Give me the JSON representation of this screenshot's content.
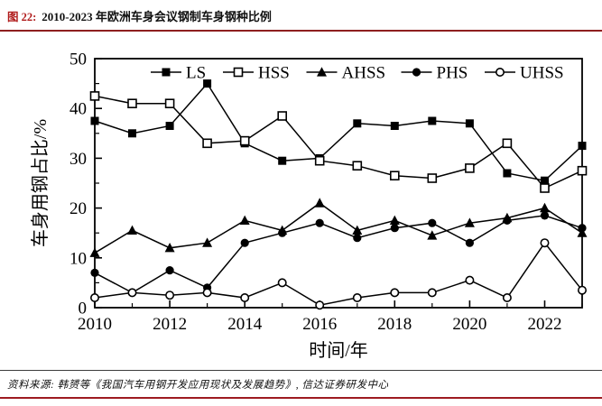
{
  "header": {
    "figure_label": "图 22:",
    "title": "2010-2023 年欧洲车身会议钢制车身钢种比例"
  },
  "footer": {
    "source": "资料来源: 韩赟等《我国汽车用钢开发应用现状及发展趋势》, 信达证券研发中心"
  },
  "colors": {
    "accent_rule": "#9e1b21",
    "header_rule": "#8e1f1f",
    "line_color": "#000000"
  },
  "chart_data": {
    "type": "line",
    "title": "",
    "x": [
      2010,
      2011,
      2012,
      2013,
      2014,
      2015,
      2016,
      2017,
      2018,
      2019,
      2020,
      2021,
      2022,
      2023
    ],
    "series": [
      {
        "name": "LS",
        "marker": "filled-square",
        "values": [
          37.5,
          35,
          36.5,
          45,
          33,
          29.5,
          30,
          37,
          36.5,
          37.5,
          37,
          27,
          25.5,
          32.5
        ]
      },
      {
        "name": "HSS",
        "marker": "open-square",
        "values": [
          42.5,
          41,
          41,
          33,
          33.5,
          38.5,
          29.5,
          28.5,
          26.5,
          26,
          28,
          33,
          24,
          27.5
        ]
      },
      {
        "name": "AHSS",
        "marker": "filled-triangle",
        "values": [
          11,
          15.5,
          12,
          13,
          17.5,
          15.5,
          21,
          15.5,
          17.5,
          14.5,
          17,
          18,
          20,
          15
        ]
      },
      {
        "name": "PHS",
        "marker": "filled-circle",
        "values": [
          7,
          3,
          7.5,
          4,
          13,
          15,
          17,
          14,
          16,
          17,
          13,
          17.5,
          18.5,
          16
        ]
      },
      {
        "name": "UHSS",
        "marker": "open-circle",
        "values": [
          2,
          3,
          2.5,
          3,
          2,
          5,
          0.5,
          2,
          3,
          3,
          5.5,
          2,
          13,
          3.5
        ]
      }
    ],
    "xlabel": "时间/年",
    "ylabel": "车身用钢占比/%",
    "xlim": [
      2010,
      2023
    ],
    "ylim": [
      0,
      50
    ],
    "xticks": [
      2010,
      2012,
      2014,
      2016,
      2018,
      2020,
      2022
    ],
    "yticks": [
      0,
      10,
      20,
      30,
      40,
      50
    ],
    "legend_position": "top-inside",
    "grid": false,
    "line_color": "#000000"
  }
}
